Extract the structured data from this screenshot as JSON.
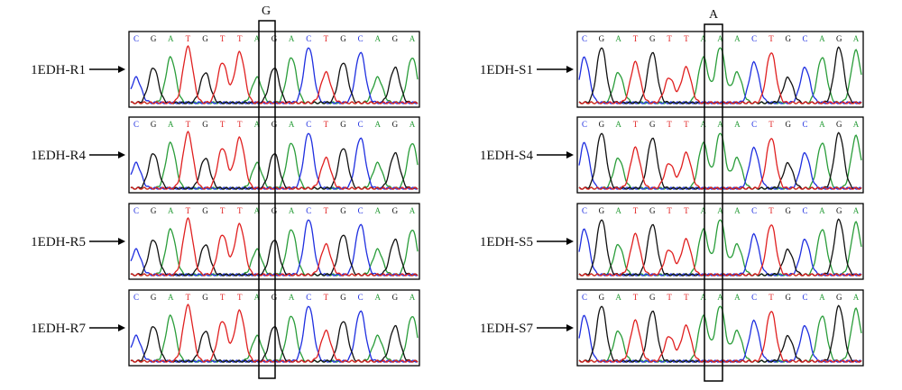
{
  "figure": {
    "sequence": "CGATGTTAGACTGCAGA",
    "base_colors": {
      "A": "#2a9d3a",
      "C": "#1f2fe0",
      "G": "#111111",
      "T": "#e02020"
    },
    "groups": [
      {
        "highlight_label": "G",
        "highlight_position": 9,
        "highlight_base": "G",
        "samples": [
          {
            "label": "1EDH-R1",
            "sequence": "CGATGTTAGACTGCAGA"
          },
          {
            "label": "1EDH-R4",
            "sequence": "CGATGTTAGACTGCAGA"
          },
          {
            "label": "1EDH-R5",
            "sequence": "CGATGTTAGACTGCAGA"
          },
          {
            "label": "1EDH-R7",
            "sequence": "CGATGTTAGACTGCAGA"
          }
        ]
      },
      {
        "highlight_label": "A",
        "highlight_position": 9,
        "highlight_base": "A",
        "samples": [
          {
            "label": "1EDH-S1",
            "sequence": "CGATGTTAAACTGCAGA"
          },
          {
            "label": "1EDH-S4",
            "sequence": "CGATGTTAAACTGCAGA"
          },
          {
            "label": "1EDH-S5",
            "sequence": "CGATGTTAAACTGCAGA"
          },
          {
            "label": "1EDH-S7",
            "sequence": "CGATGTTAAACTGCAGA"
          }
        ]
      }
    ]
  }
}
